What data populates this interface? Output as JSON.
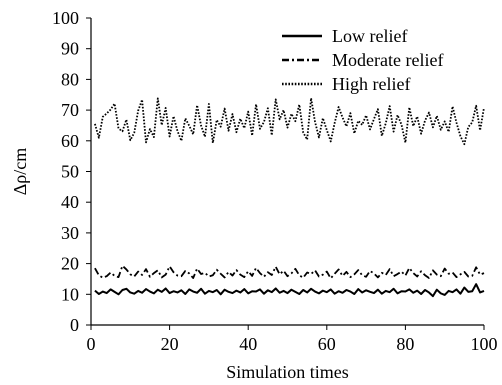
{
  "chart_data": {
    "type": "line",
    "title": "",
    "xlabel": "Simulation times",
    "ylabel": "Δρ/cm",
    "xlim": [
      0,
      100
    ],
    "ylim": [
      0,
      100
    ],
    "xticks": [
      0,
      20,
      40,
      60,
      80,
      100
    ],
    "yticks": [
      0,
      10,
      20,
      30,
      40,
      50,
      60,
      70,
      80,
      90,
      100
    ],
    "grid": false,
    "legend_position": "top-right",
    "series": [
      {
        "name": "Low relief",
        "line_style": "solid",
        "color": "#000000",
        "x": [
          1,
          2,
          3,
          4,
          5,
          6,
          7,
          8,
          9,
          10,
          11,
          12,
          13,
          14,
          15,
          16,
          17,
          18,
          19,
          20,
          21,
          22,
          23,
          24,
          25,
          26,
          27,
          28,
          29,
          30,
          31,
          32,
          33,
          34,
          35,
          36,
          37,
          38,
          39,
          40,
          41,
          42,
          43,
          44,
          45,
          46,
          47,
          48,
          49,
          50,
          51,
          52,
          53,
          54,
          55,
          56,
          57,
          58,
          59,
          60,
          61,
          62,
          63,
          64,
          65,
          66,
          67,
          68,
          69,
          70,
          71,
          72,
          73,
          74,
          75,
          76,
          77,
          78,
          79,
          80,
          81,
          82,
          83,
          84,
          85,
          86,
          87,
          88,
          89,
          90,
          91,
          92,
          93,
          94,
          95,
          96,
          97,
          98,
          99,
          100
        ],
        "values": [
          11.2,
          10.1,
          10.9,
          10.4,
          11.6,
          10.8,
          10.0,
          11.4,
          11.8,
          10.6,
          10.2,
          11.1,
          10.5,
          11.7,
          10.9,
          10.3,
          11.5,
          10.8,
          11.9,
          10.4,
          11.0,
          10.6,
          11.3,
          10.1,
          11.6,
          10.9,
          10.5,
          11.8,
          10.2,
          11.1,
          10.7,
          11.4,
          10.0,
          11.5,
          10.8,
          10.4,
          11.2,
          10.6,
          11.7,
          10.3,
          11.0,
          10.9,
          11.6,
          10.2,
          11.3,
          10.7,
          11.9,
          10.5,
          11.1,
          10.4,
          11.5,
          10.8,
          10.1,
          11.4,
          10.6,
          11.8,
          10.9,
          10.3,
          11.2,
          10.7,
          11.6,
          10.2,
          11.0,
          10.5,
          11.4,
          10.9,
          10.1,
          11.7,
          10.6,
          11.3,
          10.8,
          10.4,
          11.5,
          10.2,
          11.1,
          10.7,
          11.8,
          10.3,
          11.0,
          10.9,
          11.6,
          10.5,
          11.2,
          10.1,
          11.4,
          10.6,
          9.4,
          11.5,
          10.3,
          9.8,
          11.1,
          10.7,
          11.6,
          10.2,
          12.2,
          10.8,
          11.0,
          13.3,
          10.6,
          11.1
        ]
      },
      {
        "name": "Moderate relief",
        "line_style": "dashdot",
        "color": "#000000",
        "x": [
          1,
          2,
          3,
          4,
          5,
          6,
          7,
          8,
          9,
          10,
          11,
          12,
          13,
          14,
          15,
          16,
          17,
          18,
          19,
          20,
          21,
          22,
          23,
          24,
          25,
          26,
          27,
          28,
          29,
          30,
          31,
          32,
          33,
          34,
          35,
          36,
          37,
          38,
          39,
          40,
          41,
          42,
          43,
          44,
          45,
          46,
          47,
          48,
          49,
          50,
          51,
          52,
          53,
          54,
          55,
          56,
          57,
          58,
          59,
          60,
          61,
          62,
          63,
          64,
          65,
          66,
          67,
          68,
          69,
          70,
          71,
          72,
          73,
          74,
          75,
          76,
          77,
          78,
          79,
          80,
          81,
          82,
          83,
          84,
          85,
          86,
          87,
          88,
          89,
          90,
          91,
          92,
          93,
          94,
          95,
          96,
          97,
          98,
          99,
          100
        ],
        "values": [
          18.5,
          16.2,
          15.4,
          15.9,
          17.1,
          16.0,
          15.6,
          19.3,
          18.1,
          16.5,
          15.8,
          17.4,
          16.3,
          18.2,
          15.7,
          16.9,
          17.8,
          15.5,
          16.4,
          19.1,
          17.2,
          16.1,
          15.9,
          17.6,
          16.8,
          15.3,
          18.4,
          16.6,
          17.0,
          15.8,
          16.2,
          18.0,
          16.7,
          15.5,
          17.3,
          16.1,
          17.9,
          16.4,
          15.6,
          17.5,
          16.0,
          18.6,
          16.9,
          15.7,
          17.2,
          16.3,
          19.0,
          16.5,
          17.7,
          15.9,
          16.8,
          18.3,
          16.2,
          15.4,
          17.1,
          16.6,
          17.8,
          15.8,
          16.4,
          17.4,
          15.2,
          16.7,
          18.1,
          16.0,
          17.3,
          15.6,
          16.5,
          17.9,
          16.2,
          15.7,
          17.6,
          16.8,
          15.5,
          17.0,
          16.3,
          18.2,
          15.9,
          16.6,
          17.4,
          16.1,
          18.6,
          16.9,
          15.8,
          17.5,
          16.2,
          15.3,
          17.8,
          16.4,
          15.9,
          18.4,
          16.7,
          17.1,
          15.6,
          16.5,
          17.3,
          15.8,
          16.0,
          18.8,
          16.4,
          16.9
        ]
      },
      {
        "name": "High relief",
        "line_style": "dotted",
        "color": "#000000",
        "x": [
          1,
          2,
          3,
          4,
          5,
          6,
          7,
          8,
          9,
          10,
          11,
          12,
          13,
          14,
          15,
          16,
          17,
          18,
          19,
          20,
          21,
          22,
          23,
          24,
          25,
          26,
          27,
          28,
          29,
          30,
          31,
          32,
          33,
          34,
          35,
          36,
          37,
          38,
          39,
          40,
          41,
          42,
          43,
          44,
          45,
          46,
          47,
          48,
          49,
          50,
          51,
          52,
          53,
          54,
          55,
          56,
          57,
          58,
          59,
          60,
          61,
          62,
          63,
          64,
          65,
          66,
          67,
          68,
          69,
          70,
          71,
          72,
          73,
          74,
          75,
          76,
          77,
          78,
          79,
          80,
          81,
          82,
          83,
          84,
          85,
          86,
          87,
          88,
          89,
          90,
          91,
          92,
          93,
          94,
          95,
          96,
          97,
          98,
          99,
          100
        ],
        "values": [
          65.5,
          61.0,
          67.8,
          68.9,
          70.2,
          72.1,
          64.0,
          63.1,
          66.9,
          60.2,
          62.6,
          69.8,
          73.4,
          59.5,
          63.8,
          61.2,
          73.8,
          65.1,
          70.7,
          61.4,
          68.0,
          63.2,
          60.0,
          67.3,
          64.9,
          62.1,
          71.6,
          65.0,
          61.3,
          72.0,
          59.3,
          66.8,
          64.6,
          70.5,
          63.3,
          68.7,
          62.8,
          67.2,
          64.1,
          69.5,
          61.7,
          71.9,
          63.9,
          66.1,
          70.6,
          61.8,
          73.5,
          67.0,
          70.0,
          64.3,
          68.8,
          66.4,
          71.8,
          62.7,
          60.4,
          73.9,
          66.2,
          61.1,
          67.4,
          63.5,
          59.8,
          65.8,
          71.0,
          67.6,
          64.7,
          69.0,
          62.4,
          66.5,
          65.2,
          68.3,
          63.7,
          67.1,
          70.3,
          61.6,
          65.7,
          71.3,
          63.0,
          68.4,
          65.3,
          59.4,
          70.9,
          64.8,
          67.9,
          62.3,
          66.6,
          69.2,
          64.4,
          68.1,
          63.6,
          66.3,
          62.9,
          71.2,
          65.9,
          61.5,
          58.9,
          64.5,
          66.0,
          71.4,
          63.4,
          70.8
        ]
      }
    ]
  }
}
